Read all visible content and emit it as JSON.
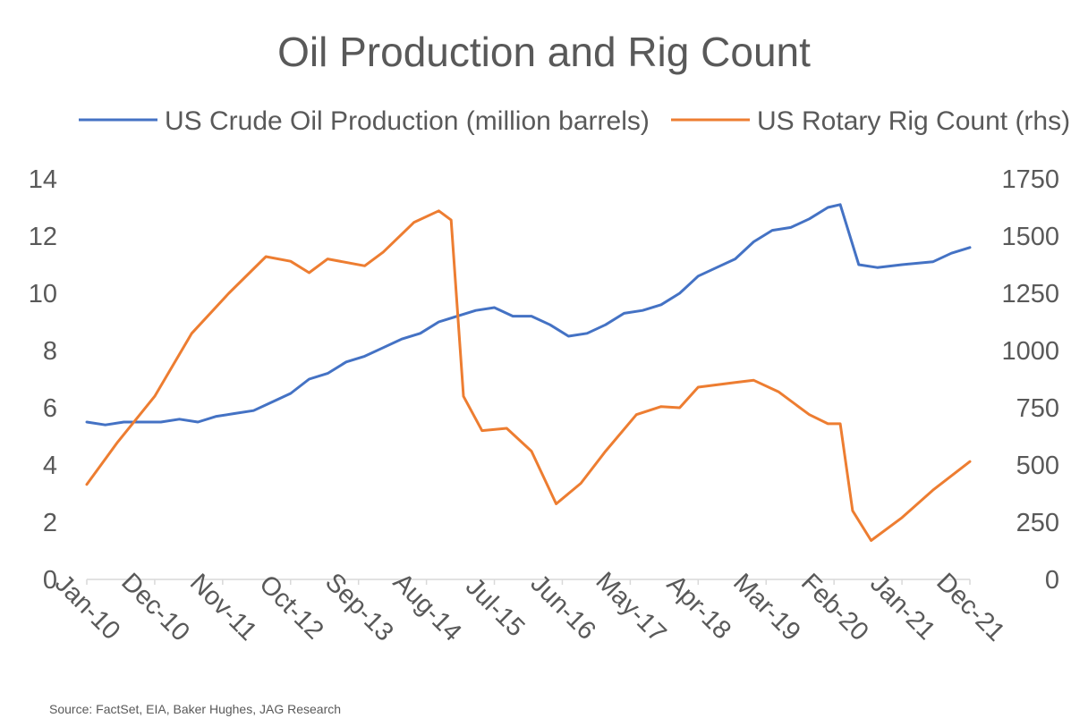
{
  "chart_data": {
    "type": "line",
    "title": "Oil Production and Rig Count",
    "source": "Source: FactSet, EIA, Baker Hughes, JAG Research",
    "x_tick_labels": [
      "Jan-10",
      "Dec-10",
      "Nov-11",
      "Oct-12",
      "Sep-13",
      "Aug-14",
      "Jul-15",
      "Jun-16",
      "May-17",
      "Apr-18",
      "Mar-19",
      "Feb-20",
      "Jan-21",
      "Dec-21"
    ],
    "x_range": [
      "2010-01",
      "2021-12"
    ],
    "y_left": {
      "min": 0,
      "max": 14,
      "ticks": [
        "0",
        "2",
        "4",
        "6",
        "8",
        "10",
        "12",
        "14"
      ]
    },
    "y_right": {
      "min": 0,
      "max": 1750,
      "ticks": [
        "0",
        "250",
        "500",
        "750",
        "1000",
        "1250",
        "1500",
        "1750"
      ]
    },
    "legend_position": "top",
    "grid": false,
    "series": [
      {
        "name": "US Crude Oil Production (million barrels)",
        "axis": "left",
        "color": "#4472C4",
        "points": [
          [
            "2010-01",
            5.5
          ],
          [
            "2010-04",
            5.4
          ],
          [
            "2010-07",
            5.5
          ],
          [
            "2010-10",
            5.5
          ],
          [
            "2011-01",
            5.5
          ],
          [
            "2011-04",
            5.6
          ],
          [
            "2011-07",
            5.5
          ],
          [
            "2011-10",
            5.7
          ],
          [
            "2012-01",
            5.8
          ],
          [
            "2012-04",
            5.9
          ],
          [
            "2012-07",
            6.2
          ],
          [
            "2012-10",
            6.5
          ],
          [
            "2013-01",
            7.0
          ],
          [
            "2013-04",
            7.2
          ],
          [
            "2013-07",
            7.6
          ],
          [
            "2013-10",
            7.8
          ],
          [
            "2014-01",
            8.1
          ],
          [
            "2014-04",
            8.4
          ],
          [
            "2014-07",
            8.6
          ],
          [
            "2014-10",
            9.0
          ],
          [
            "2015-01",
            9.2
          ],
          [
            "2015-04",
            9.4
          ],
          [
            "2015-07",
            9.5
          ],
          [
            "2015-10",
            9.2
          ],
          [
            "2016-01",
            9.2
          ],
          [
            "2016-04",
            8.9
          ],
          [
            "2016-07",
            8.5
          ],
          [
            "2016-10",
            8.6
          ],
          [
            "2017-01",
            8.9
          ],
          [
            "2017-04",
            9.3
          ],
          [
            "2017-07",
            9.4
          ],
          [
            "2017-10",
            9.6
          ],
          [
            "2018-01",
            10.0
          ],
          [
            "2018-04",
            10.6
          ],
          [
            "2018-07",
            10.9
          ],
          [
            "2018-10",
            11.2
          ],
          [
            "2019-01",
            11.8
          ],
          [
            "2019-04",
            12.2
          ],
          [
            "2019-07",
            12.3
          ],
          [
            "2019-10",
            12.6
          ],
          [
            "2020-01",
            13.0
          ],
          [
            "2020-03",
            13.1
          ],
          [
            "2020-06",
            11.0
          ],
          [
            "2020-09",
            10.9
          ],
          [
            "2021-01",
            11.0
          ],
          [
            "2021-06",
            11.1
          ],
          [
            "2021-09",
            11.4
          ],
          [
            "2021-12",
            11.6
          ]
        ]
      },
      {
        "name": "US Rotary Rig Count (rhs)",
        "axis": "right",
        "color": "#ED7D31",
        "points": [
          [
            "2010-01",
            415
          ],
          [
            "2010-06",
            600
          ],
          [
            "2010-12",
            800
          ],
          [
            "2011-06",
            1075
          ],
          [
            "2011-12",
            1250
          ],
          [
            "2012-06",
            1410
          ],
          [
            "2012-10",
            1390
          ],
          [
            "2013-01",
            1340
          ],
          [
            "2013-04",
            1400
          ],
          [
            "2013-10",
            1370
          ],
          [
            "2014-01",
            1430
          ],
          [
            "2014-06",
            1560
          ],
          [
            "2014-10",
            1610
          ],
          [
            "2014-12",
            1570
          ],
          [
            "2015-02",
            800
          ],
          [
            "2015-05",
            650
          ],
          [
            "2015-09",
            660
          ],
          [
            "2016-01",
            560
          ],
          [
            "2016-05",
            330
          ],
          [
            "2016-09",
            420
          ],
          [
            "2017-01",
            560
          ],
          [
            "2017-06",
            720
          ],
          [
            "2017-10",
            755
          ],
          [
            "2018-01",
            750
          ],
          [
            "2018-04",
            840
          ],
          [
            "2018-10",
            860
          ],
          [
            "2019-01",
            870
          ],
          [
            "2019-05",
            820
          ],
          [
            "2019-10",
            720
          ],
          [
            "2020-01",
            680
          ],
          [
            "2020-03",
            680
          ],
          [
            "2020-05",
            300
          ],
          [
            "2020-08",
            170
          ],
          [
            "2021-01",
            270
          ],
          [
            "2021-06",
            390
          ],
          [
            "2021-12",
            515
          ]
        ]
      }
    ]
  }
}
